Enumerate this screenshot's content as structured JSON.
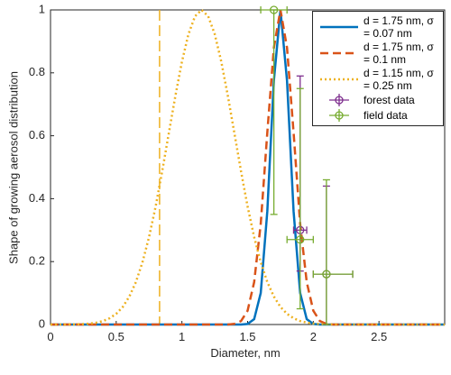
{
  "chart_data": {
    "type": "line",
    "x_label": "Diameter, nm",
    "y_label": "Shape of growing aerosol distribution",
    "xlim": [
      0,
      3
    ],
    "xticks": [
      0,
      0.5,
      1,
      1.5,
      2,
      2.5
    ],
    "ylim": [
      0,
      1
    ],
    "yticks": [
      0,
      0.2,
      0.4,
      0.6,
      0.8,
      1
    ],
    "legend": "upper right",
    "vline": {
      "x": 0.83,
      "color": "#edb120"
    },
    "x": [
      0,
      0.05,
      0.1,
      0.15,
      0.2,
      0.25,
      0.3,
      0.35,
      0.4,
      0.45,
      0.5,
      0.55,
      0.6,
      0.65,
      0.7,
      0.75,
      0.8,
      0.85,
      0.9,
      0.95,
      1,
      1.05,
      1.1,
      1.15,
      1.2,
      1.25,
      1.3,
      1.35,
      1.4,
      1.45,
      1.5,
      1.55,
      1.6,
      1.65,
      1.7,
      1.75,
      1.8,
      1.85,
      1.9,
      1.95,
      2,
      2.05,
      2.1,
      2.15,
      2.2,
      2.25,
      2.3,
      2.35,
      2.4,
      2.45,
      2.5,
      2.55,
      2.6,
      2.65,
      2.7,
      2.75,
      2.8,
      2.85,
      2.9,
      2.95,
      3
    ],
    "series": [
      {
        "name": "d = 1.75 nm, σ = 0.07 nm",
        "color": "#0072bd",
        "style": "solid",
        "values": [
          0,
          0,
          0,
          0,
          0,
          0,
          0,
          0,
          0,
          0,
          0,
          0,
          0,
          0,
          0,
          0,
          0,
          0,
          0,
          0,
          0,
          0,
          0,
          0,
          0,
          0,
          0,
          0,
          0,
          0,
          0.0017,
          0.017,
          0.1,
          0.36,
          0.775,
          1,
          0.775,
          0.36,
          0.1,
          0.017,
          0.0017,
          0,
          0,
          0,
          0,
          0,
          0,
          0,
          0,
          0,
          0,
          0,
          0,
          0,
          0,
          0,
          0,
          0,
          0,
          0,
          0
        ]
      },
      {
        "name": "d = 1.75 nm, σ = 0.1 nm",
        "color": "#d95319",
        "style": "dashed",
        "values": [
          0,
          0,
          0,
          0,
          0,
          0,
          0,
          0,
          0,
          0,
          0,
          0,
          0,
          0,
          0,
          0,
          0,
          0,
          0,
          0,
          0,
          0,
          0,
          0,
          0,
          0,
          0,
          0,
          0.002,
          0.011,
          0.044,
          0.135,
          0.32,
          0.61,
          0.88,
          1,
          0.88,
          0.61,
          0.32,
          0.135,
          0.044,
          0.011,
          0.002,
          0,
          0,
          0,
          0,
          0,
          0,
          0,
          0,
          0,
          0,
          0,
          0,
          0,
          0,
          0,
          0,
          0,
          0
        ]
      },
      {
        "name": "d = 1.15 nm, σ = 0.25 nm",
        "color": "#edb120",
        "style": "dotted",
        "values": [
          0,
          0,
          0,
          0.0003,
          0.0007,
          0.0016,
          0.003,
          0.006,
          0.011,
          0.02,
          0.034,
          0.056,
          0.089,
          0.135,
          0.198,
          0.278,
          0.375,
          0.487,
          0.607,
          0.726,
          0.835,
          0.923,
          0.98,
          1,
          0.98,
          0.923,
          0.835,
          0.726,
          0.607,
          0.487,
          0.375,
          0.278,
          0.198,
          0.135,
          0.089,
          0.056,
          0.034,
          0.02,
          0.011,
          0.006,
          0.003,
          0.0016,
          0.0007,
          0.0003,
          0,
          0,
          0,
          0,
          0,
          0,
          0,
          0,
          0,
          0,
          0,
          0,
          0,
          0,
          0,
          0,
          0
        ]
      },
      {
        "name": "forest data",
        "color": "#7e2f8e",
        "style": "errorbar",
        "x": [
          1.9,
          2.1
        ],
        "values": [
          0.3,
          0.16
        ],
        "yerr_lower": [
          0.13,
          0.16
        ],
        "yerr_upper": [
          0.49,
          0.28
        ],
        "xerr_lower": [
          0.05,
          0.1
        ],
        "xerr_upper": [
          0.05,
          0.2
        ]
      },
      {
        "name": "field data",
        "color": "#77ac30",
        "style": "errorbar",
        "x": [
          1.7,
          1.9,
          2.1
        ],
        "values": [
          1,
          0.27,
          0.16
        ],
        "yerr_lower": [
          0.65,
          0.22,
          0.16
        ],
        "yerr_upper": [
          0,
          0.48,
          0.3
        ],
        "xerr_lower": [
          0.1,
          0.1,
          0.1
        ],
        "xerr_upper": [
          0.1,
          0.1,
          0.2
        ]
      }
    ]
  }
}
